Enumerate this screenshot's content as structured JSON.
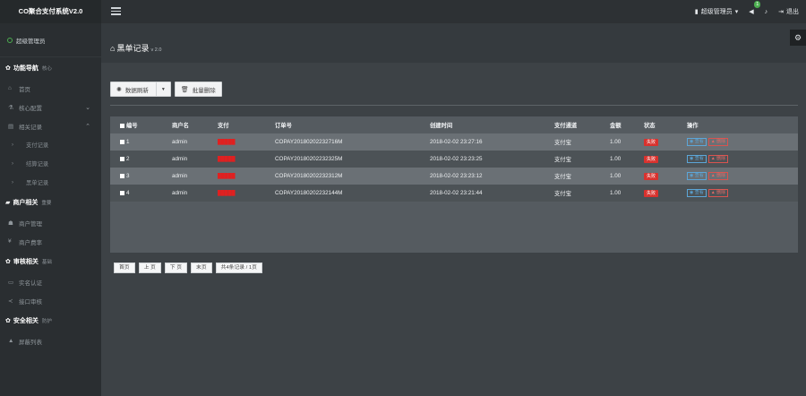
{
  "app": {
    "title": "CO聚合支付系统V2.0"
  },
  "topbar": {
    "admin_label": "超级管理员",
    "notice_count": "1",
    "logout_label": "退出"
  },
  "sidebar": {
    "user_label": "超级管理员",
    "sections": [
      {
        "title": "功能导航",
        "sub": "核心"
      },
      {
        "title": "商户相关",
        "sub": "重要"
      },
      {
        "title": "审核相关",
        "sub": "基础"
      },
      {
        "title": "安全相关",
        "sub": "防护"
      }
    ],
    "nav": {
      "home": "首页",
      "core_config": "核心配置",
      "records": "相关记录",
      "payment_records": "支付记录",
      "withdraw_records": "结算记录",
      "blacklist_records": "黑单记录",
      "merchant_manage": "商户管理",
      "merchant_rate": "商户费率",
      "realname_auth": "实名认证",
      "api_audit": "接口审核",
      "ip_blacklist": "屏蔽列表"
    }
  },
  "page": {
    "title": "黑单记录",
    "version": "v 2.0"
  },
  "toolbar": {
    "refresh_label": "数据刷新",
    "batch_delete_label": "批量删除"
  },
  "table": {
    "headers": [
      "编号",
      "商户名",
      "支付",
      "订单号",
      "创建时间",
      "支付通道",
      "金额",
      "状态",
      "操作"
    ],
    "rows": [
      {
        "id": "1",
        "merchant": "admin",
        "pay": "█████",
        "order": "COPAY20180202232716M",
        "time": "2018-02-02 23:27:16",
        "channel": "支付宝",
        "amount": "1.00",
        "status": "失败"
      },
      {
        "id": "2",
        "merchant": "admin",
        "pay": "█████",
        "order": "COPAY20180202232325M",
        "time": "2018-02-02 23:23:25",
        "channel": "支付宝",
        "amount": "1.00",
        "status": "失败"
      },
      {
        "id": "3",
        "merchant": "admin",
        "pay": "█████",
        "order": "COPAY20180202232312M",
        "time": "2018-02-02 23:23:12",
        "channel": "支付宝",
        "amount": "1.00",
        "status": "失败"
      },
      {
        "id": "4",
        "merchant": "admin",
        "pay": "█████",
        "order": "COPAY20180202232144M",
        "time": "2018-02-02 23:21:44",
        "channel": "支付宝",
        "amount": "1.00",
        "status": "失败"
      }
    ],
    "view_label": "查看",
    "delete_label": "删除"
  },
  "pager": {
    "first": "首页",
    "prev": "上 页",
    "next": "下 页",
    "last": "末页",
    "summary": "共4条记录 / 1页"
  }
}
